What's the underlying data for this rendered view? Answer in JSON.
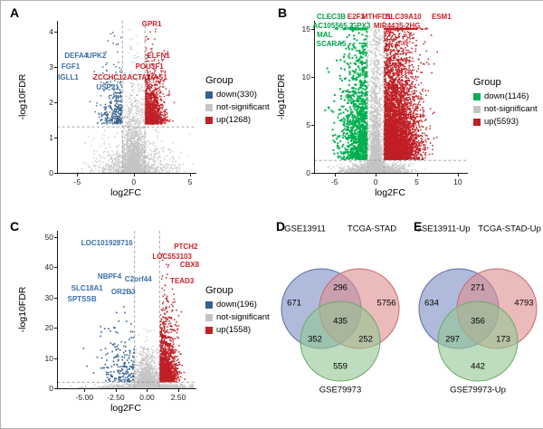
{
  "chart_data": [
    {
      "id": "A",
      "panel_letter": "A",
      "type": "scatter",
      "subtype": "volcano",
      "xlabel": "log2FC",
      "ylabel": "-log10FDR",
      "xlim": [
        -6.8,
        5.4
      ],
      "ylim": [
        0,
        4.3
      ],
      "xticks": [
        -5,
        0,
        5
      ],
      "yticks": [
        0,
        1,
        2,
        3,
        4
      ],
      "threshold_x": [
        -1,
        1
      ],
      "threshold_y": 1.3,
      "grid": false,
      "counts": {
        "down": 330,
        "up": 1268
      },
      "palette": {
        "down": "#35618f",
        "not_significant": "#c4c4c4",
        "up": "#c01f25",
        "down_label": "#3a6fa8",
        "up_label": "#cc2128"
      },
      "legend": {
        "title": "Group",
        "position": "right",
        "entries": [
          {
            "label": "down(330)",
            "color": "#35618f"
          },
          {
            "label": "not-significant",
            "color": "#c4c4c4"
          },
          {
            "label": "up(1268)",
            "color": "#c01f25"
          }
        ]
      },
      "gene_labels": [
        {
          "text": "GPR1",
          "group": "up",
          "x": 1.6,
          "y": 4.2
        },
        {
          "text": "DEFA4",
          "group": "down",
          "x": -5.1,
          "y": 3.3
        },
        {
          "text": "UPK2",
          "group": "down",
          "x": -3.3,
          "y": 3.3
        },
        {
          "text": "ELFN1",
          "group": "up",
          "x": 2.2,
          "y": 3.3
        },
        {
          "text": "FGF1",
          "group": "down",
          "x": -5.6,
          "y": 3.0
        },
        {
          "text": "POU3F1",
          "group": "up",
          "x": 1.4,
          "y": 3.0
        },
        {
          "text": "IGLL1",
          "group": "down",
          "x": -5.8,
          "y": 2.7
        },
        {
          "text": "ZCCHC12",
          "group": "up",
          "x": -2.1,
          "y": 2.7
        },
        {
          "text": "ACTA2-AS1",
          "group": "up",
          "x": 1.2,
          "y": 2.7
        },
        {
          "text": "USP21",
          "group": "down",
          "x": -2.3,
          "y": 2.4
        }
      ]
    },
    {
      "id": "B",
      "panel_letter": "B",
      "type": "scatter",
      "subtype": "volcano",
      "xlabel": "log2FC",
      "ylabel": "-log10FDR",
      "xlim": [
        -7.5,
        11
      ],
      "ylim": [
        0,
        15.8
      ],
      "xticks": [
        -5,
        0,
        5,
        10
      ],
      "yticks": [
        0,
        5,
        10,
        15
      ],
      "threshold_x": [
        -1,
        1
      ],
      "threshold_y": 1.3,
      "grid": false,
      "counts": {
        "down": 1146,
        "up": 5593
      },
      "palette": {
        "down": "#00b050",
        "not_significant": "#c4c4c4",
        "up": "#c01f25",
        "down_label": "#00a14b",
        "up_label": "#cc2128"
      },
      "legend": {
        "title": "Group",
        "position": "right",
        "entries": [
          {
            "label": "down(1146)",
            "color": "#00b050"
          },
          {
            "label": "not-significant",
            "color": "#c4c4c4"
          },
          {
            "label": "up(5593)",
            "color": "#c01f25"
          }
        ]
      },
      "gene_labels": [
        {
          "text": "CLEC3B",
          "group": "down",
          "x": -5.4,
          "y": 16.2
        },
        {
          "text": "E2F3",
          "group": "up",
          "x": -2.4,
          "y": 16.2
        },
        {
          "text": "MTHFD1",
          "group": "up",
          "x": 0.1,
          "y": 16.2
        },
        {
          "text": "SLC39A10",
          "group": "up",
          "x": 3.4,
          "y": 16.2
        },
        {
          "text": "ESM1",
          "group": "up",
          "x": 8.0,
          "y": 16.2
        },
        {
          "text": "AC105565.2",
          "group": "down",
          "x": -5.2,
          "y": 15.2
        },
        {
          "text": "GPX3",
          "group": "down",
          "x": -1.8,
          "y": 15.2
        },
        {
          "text": "MIR4435-2HG",
          "group": "up",
          "x": 2.6,
          "y": 15.2
        },
        {
          "text": "MAL",
          "group": "down",
          "x": -6.2,
          "y": 14.3
        },
        {
          "text": "SCARA5",
          "group": "down",
          "x": -5.4,
          "y": 13.4
        }
      ]
    },
    {
      "id": "C",
      "panel_letter": "C",
      "type": "scatter",
      "subtype": "volcano",
      "xlabel": "log2FC",
      "ylabel": "-log10FDR",
      "xlim": [
        -7.2,
        3.8
      ],
      "ylim": [
        0,
        52
      ],
      "xticks": [
        -5,
        -2.5,
        0,
        2.5
      ],
      "xtick_labels": [
        "-5.00",
        "-2.50",
        "0.00",
        "2.50"
      ],
      "yticks": [
        0,
        10,
        20,
        30,
        40,
        50
      ],
      "threshold_x": [
        -1,
        1
      ],
      "threshold_y": 2,
      "grid": false,
      "counts": {
        "down": 196,
        "up": 1558
      },
      "palette": {
        "down": "#35618f",
        "not_significant": "#c4c4c4",
        "up": "#c01f25",
        "down_label": "#3a6fa8",
        "up_label": "#cc2128"
      },
      "legend": {
        "title": "Group",
        "position": "right",
        "entries": [
          {
            "label": "down(196)",
            "color": "#35618f"
          },
          {
            "label": "not-significant",
            "color": "#c4c4c4"
          },
          {
            "label": "up(1558)",
            "color": "#c01f25"
          }
        ]
      },
      "gene_labels": [
        {
          "text": "LOC101928716",
          "group": "down",
          "x": -3.2,
          "y": 47.8
        },
        {
          "text": "PTCH2",
          "group": "up",
          "x": 3.1,
          "y": 46.6
        },
        {
          "text": "LOC553103",
          "group": "up",
          "x": 2.0,
          "y": 43.3
        },
        {
          "text": "CBX8",
          "group": "up",
          "x": 3.4,
          "y": 40.6
        },
        {
          "text": "NBPF4",
          "group": "down",
          "x": -3.0,
          "y": 36.8
        },
        {
          "text": "C2orf44",
          "group": "down",
          "x": -0.7,
          "y": 35.9
        },
        {
          "text": "TEAD3",
          "group": "up",
          "x": 2.8,
          "y": 35.3
        },
        {
          "text": "SLC18A1",
          "group": "down",
          "x": -4.8,
          "y": 32.9
        },
        {
          "text": "OR2B3",
          "group": "down",
          "x": -1.9,
          "y": 31.7
        },
        {
          "text": "SPTSSB",
          "group": "down",
          "x": -5.2,
          "y": 29.3
        }
      ]
    },
    {
      "id": "D",
      "panel_letter": "D",
      "type": "venn",
      "sets": [
        {
          "label": "GSE13911",
          "color": "#7b8ec4",
          "stroke": "#5a6aa8"
        },
        {
          "label": "TCGA-STAD",
          "color": "#dd8e90",
          "stroke": "#c26a6d"
        },
        {
          "label": "GSE79973",
          "color": "#93c793",
          "stroke": "#6aa86a"
        }
      ],
      "regions": {
        "set1_only": 671,
        "set1_set2": 296,
        "set2_only": 5756,
        "set1_set2_set3": 435,
        "set1_set3": 352,
        "set2_set3": 252,
        "set3_only": 559
      }
    },
    {
      "id": "E",
      "panel_letter": "E",
      "type": "venn",
      "sets": [
        {
          "label": "GSE13911-Up",
          "color": "#7b8ec4",
          "stroke": "#5a6aa8"
        },
        {
          "label": "TCGA-STAD-Up",
          "color": "#dd8e90",
          "stroke": "#c26a6d"
        },
        {
          "label": "GSE79973-Up",
          "color": "#93c793",
          "stroke": "#6aa86a"
        }
      ],
      "regions": {
        "set1_only": 634,
        "set1_set2": 271,
        "set2_only": 4793,
        "set1_set2_set3": 356,
        "set1_set3": 297,
        "set2_set3": 173,
        "set3_only": 442
      }
    }
  ]
}
